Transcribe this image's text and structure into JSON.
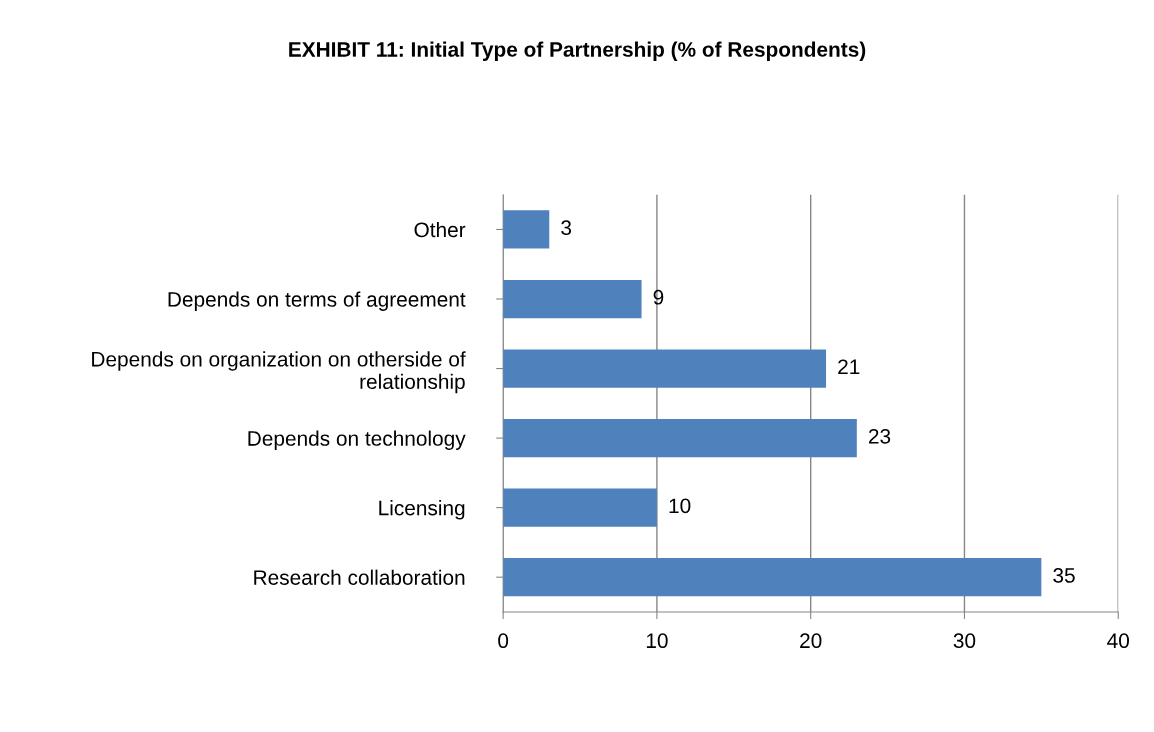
{
  "chart_data": {
    "type": "bar",
    "orientation": "horizontal",
    "title": "EXHIBIT 11: Initial Type of Partnership (% of Respondents)",
    "categories": [
      "Other",
      "Depends on terms of agreement",
      "Depends on organization on otherside of\nrelationship",
      "Depends on technology",
      "Licensing",
      "Research collaboration"
    ],
    "values": [
      3,
      9,
      21,
      23,
      10,
      35
    ],
    "color": "#4f81bd",
    "xlim": [
      0,
      40
    ],
    "xticks": [
      0,
      10,
      20,
      30,
      40
    ],
    "grid": "x",
    "data_labels": true
  }
}
